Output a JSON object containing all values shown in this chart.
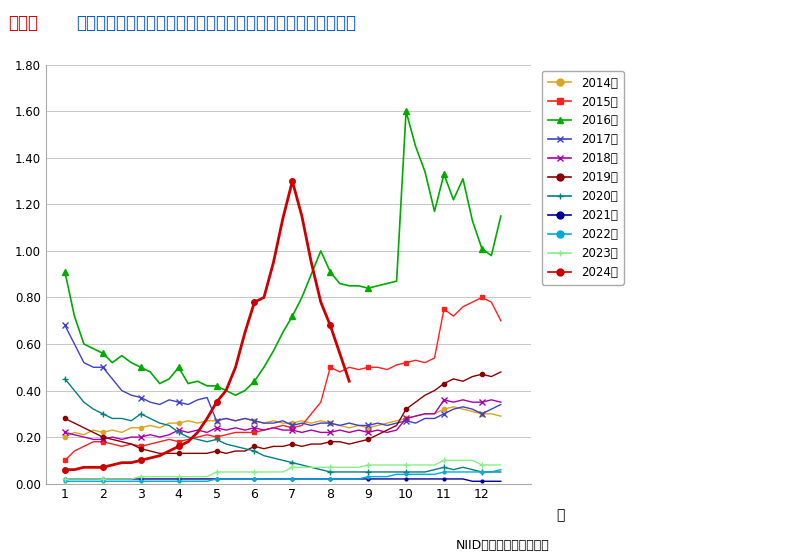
{
  "title_red": "図１．",
  "title_blue": "わが国における最近１０年間のマイコプラズマ肺炎患者の動向",
  "xlabel": "月",
  "footnote": "NIID　国立感染症研究所",
  "ylim": [
    0.0,
    1.8
  ],
  "yticks": [
    0.0,
    0.2,
    0.4,
    0.6,
    0.8,
    1.0,
    1.2,
    1.4,
    1.6,
    1.8
  ],
  "xlim": [
    0.5,
    13.3
  ],
  "xticks": [
    1,
    2,
    3,
    4,
    5,
    6,
    7,
    8,
    9,
    10,
    11,
    12
  ],
  "series": [
    {
      "label": "2014年",
      "color": "#DAA520",
      "marker": "o",
      "markersize": 3,
      "linewidth": 1.0,
      "xdata": [
        1.0,
        1.25,
        1.5,
        1.75,
        2.0,
        2.25,
        2.5,
        2.75,
        3.0,
        3.25,
        3.5,
        3.75,
        4.0,
        4.25,
        4.5,
        4.75,
        5.0,
        5.25,
        5.5,
        5.75,
        6.0,
        6.25,
        6.5,
        6.75,
        7.0,
        7.25,
        7.5,
        7.75,
        8.0,
        8.25,
        8.5,
        8.75,
        9.0,
        9.25,
        9.5,
        9.75,
        10.0,
        10.25,
        10.5,
        10.75,
        11.0,
        11.25,
        11.5,
        11.75,
        12.0,
        12.25,
        12.5
      ],
      "ydata": [
        0.2,
        0.22,
        0.21,
        0.23,
        0.22,
        0.23,
        0.22,
        0.24,
        0.24,
        0.25,
        0.24,
        0.26,
        0.26,
        0.27,
        0.26,
        0.27,
        0.27,
        0.28,
        0.27,
        0.28,
        0.27,
        0.26,
        0.27,
        0.26,
        0.26,
        0.27,
        0.26,
        0.27,
        0.26,
        0.25,
        0.24,
        0.25,
        0.24,
        0.25,
        0.26,
        0.27,
        0.28,
        0.29,
        0.3,
        0.3,
        0.32,
        0.33,
        0.32,
        0.31,
        0.3,
        0.3,
        0.29
      ]
    },
    {
      "label": "2015年",
      "color": "#FF2020",
      "marker": "s",
      "markersize": 3,
      "linewidth": 1.0,
      "xdata": [
        1.0,
        1.25,
        1.5,
        1.75,
        2.0,
        2.25,
        2.5,
        2.75,
        3.0,
        3.25,
        3.5,
        3.75,
        4.0,
        4.25,
        4.5,
        4.75,
        5.0,
        5.25,
        5.5,
        5.75,
        6.0,
        6.25,
        6.5,
        6.75,
        7.0,
        7.25,
        7.5,
        7.75,
        8.0,
        8.25,
        8.5,
        8.75,
        9.0,
        9.25,
        9.5,
        9.75,
        10.0,
        10.25,
        10.5,
        10.75,
        11.0,
        11.25,
        11.5,
        11.75,
        12.0,
        12.25,
        12.5
      ],
      "ydata": [
        0.1,
        0.14,
        0.16,
        0.18,
        0.18,
        0.17,
        0.16,
        0.17,
        0.16,
        0.17,
        0.18,
        0.19,
        0.18,
        0.19,
        0.2,
        0.21,
        0.2,
        0.21,
        0.22,
        0.22,
        0.22,
        0.23,
        0.24,
        0.25,
        0.24,
        0.25,
        0.3,
        0.35,
        0.5,
        0.48,
        0.5,
        0.49,
        0.5,
        0.5,
        0.49,
        0.51,
        0.52,
        0.53,
        0.52,
        0.54,
        0.75,
        0.72,
        0.76,
        0.78,
        0.8,
        0.78,
        0.7
      ]
    },
    {
      "label": "2016年",
      "color": "#00AA00",
      "marker": "^",
      "markersize": 4,
      "linewidth": 1.2,
      "xdata": [
        1.0,
        1.25,
        1.5,
        1.75,
        2.0,
        2.25,
        2.5,
        2.75,
        3.0,
        3.25,
        3.5,
        3.75,
        4.0,
        4.25,
        4.5,
        4.75,
        5.0,
        5.25,
        5.5,
        5.75,
        6.0,
        6.25,
        6.5,
        6.75,
        7.0,
        7.25,
        7.5,
        7.75,
        8.0,
        8.25,
        8.5,
        8.75,
        9.0,
        9.25,
        9.5,
        9.75,
        10.0,
        10.25,
        10.5,
        10.75,
        11.0,
        11.25,
        11.5,
        11.75,
        12.0,
        12.25,
        12.5
      ],
      "ydata": [
        0.91,
        0.72,
        0.6,
        0.58,
        0.56,
        0.52,
        0.55,
        0.52,
        0.5,
        0.48,
        0.43,
        0.45,
        0.5,
        0.43,
        0.44,
        0.42,
        0.42,
        0.4,
        0.38,
        0.4,
        0.44,
        0.5,
        0.57,
        0.65,
        0.72,
        0.8,
        0.9,
        1.0,
        0.91,
        0.86,
        0.85,
        0.85,
        0.84,
        0.85,
        0.86,
        0.87,
        1.6,
        1.45,
        1.34,
        1.17,
        1.33,
        1.22,
        1.31,
        1.13,
        1.01,
        0.98,
        1.15
      ]
    },
    {
      "label": "2017年",
      "color": "#4040CC",
      "marker": "x",
      "markersize": 4,
      "linewidth": 1.0,
      "xdata": [
        1.0,
        1.25,
        1.5,
        1.75,
        2.0,
        2.25,
        2.5,
        2.75,
        3.0,
        3.25,
        3.5,
        3.75,
        4.0,
        4.25,
        4.5,
        4.75,
        5.0,
        5.25,
        5.5,
        5.75,
        6.0,
        6.25,
        6.5,
        6.75,
        7.0,
        7.25,
        7.5,
        7.75,
        8.0,
        8.25,
        8.5,
        8.75,
        9.0,
        9.25,
        9.5,
        9.75,
        10.0,
        10.25,
        10.5,
        10.75,
        11.0,
        11.25,
        11.5,
        11.75,
        12.0,
        12.25,
        12.5
      ],
      "ydata": [
        0.68,
        0.6,
        0.52,
        0.5,
        0.5,
        0.45,
        0.4,
        0.38,
        0.37,
        0.35,
        0.34,
        0.36,
        0.35,
        0.34,
        0.36,
        0.37,
        0.27,
        0.28,
        0.27,
        0.28,
        0.27,
        0.26,
        0.26,
        0.27,
        0.25,
        0.26,
        0.25,
        0.26,
        0.26,
        0.25,
        0.26,
        0.25,
        0.25,
        0.26,
        0.25,
        0.26,
        0.27,
        0.26,
        0.28,
        0.28,
        0.3,
        0.32,
        0.33,
        0.32,
        0.3,
        0.32,
        0.34
      ]
    },
    {
      "label": "2018年",
      "color": "#AA00AA",
      "marker": "x",
      "markersize": 4,
      "linewidth": 1.0,
      "xdata": [
        1.0,
        1.25,
        1.5,
        1.75,
        2.0,
        2.25,
        2.5,
        2.75,
        3.0,
        3.25,
        3.5,
        3.75,
        4.0,
        4.25,
        4.5,
        4.75,
        5.0,
        5.25,
        5.5,
        5.75,
        6.0,
        6.25,
        6.5,
        6.75,
        7.0,
        7.25,
        7.5,
        7.75,
        8.0,
        8.25,
        8.5,
        8.75,
        9.0,
        9.25,
        9.5,
        9.75,
        10.0,
        10.25,
        10.5,
        10.75,
        11.0,
        11.25,
        11.5,
        11.75,
        12.0,
        12.25,
        12.5
      ],
      "ydata": [
        0.22,
        0.21,
        0.2,
        0.19,
        0.19,
        0.2,
        0.19,
        0.2,
        0.2,
        0.21,
        0.2,
        0.21,
        0.23,
        0.22,
        0.23,
        0.22,
        0.24,
        0.23,
        0.24,
        0.23,
        0.24,
        0.23,
        0.24,
        0.23,
        0.23,
        0.22,
        0.23,
        0.22,
        0.22,
        0.23,
        0.22,
        0.23,
        0.22,
        0.23,
        0.22,
        0.23,
        0.28,
        0.29,
        0.3,
        0.3,
        0.36,
        0.35,
        0.36,
        0.35,
        0.35,
        0.36,
        0.35
      ]
    },
    {
      "label": "2019年",
      "color": "#8B0000",
      "marker": "o",
      "markersize": 3,
      "linewidth": 1.0,
      "xdata": [
        1.0,
        1.25,
        1.5,
        1.75,
        2.0,
        2.25,
        2.5,
        2.75,
        3.0,
        3.25,
        3.5,
        3.75,
        4.0,
        4.25,
        4.5,
        4.75,
        5.0,
        5.25,
        5.5,
        5.75,
        6.0,
        6.25,
        6.5,
        6.75,
        7.0,
        7.25,
        7.5,
        7.75,
        8.0,
        8.25,
        8.5,
        8.75,
        9.0,
        9.25,
        9.5,
        9.75,
        10.0,
        10.25,
        10.5,
        10.75,
        11.0,
        11.25,
        11.5,
        11.75,
        12.0,
        12.25,
        12.5
      ],
      "ydata": [
        0.28,
        0.26,
        0.24,
        0.22,
        0.2,
        0.19,
        0.18,
        0.17,
        0.15,
        0.14,
        0.13,
        0.13,
        0.13,
        0.13,
        0.13,
        0.13,
        0.14,
        0.13,
        0.14,
        0.14,
        0.16,
        0.15,
        0.16,
        0.16,
        0.17,
        0.16,
        0.17,
        0.17,
        0.18,
        0.18,
        0.17,
        0.18,
        0.19,
        0.21,
        0.23,
        0.25,
        0.32,
        0.35,
        0.38,
        0.4,
        0.43,
        0.45,
        0.44,
        0.46,
        0.47,
        0.46,
        0.48
      ]
    },
    {
      "label": "2020年",
      "color": "#008080",
      "marker": "+",
      "markersize": 5,
      "linewidth": 1.0,
      "xdata": [
        1.0,
        1.25,
        1.5,
        1.75,
        2.0,
        2.25,
        2.5,
        2.75,
        3.0,
        3.25,
        3.5,
        3.75,
        4.0,
        4.25,
        4.5,
        4.75,
        5.0,
        5.25,
        5.5,
        5.75,
        6.0,
        6.25,
        6.5,
        6.75,
        7.0,
        7.25,
        7.5,
        7.75,
        8.0,
        8.25,
        8.5,
        8.75,
        9.0,
        9.25,
        9.5,
        9.75,
        10.0,
        10.25,
        10.5,
        10.75,
        11.0,
        11.25,
        11.5,
        11.75,
        12.0,
        12.25,
        12.5
      ],
      "ydata": [
        0.45,
        0.4,
        0.35,
        0.32,
        0.3,
        0.28,
        0.28,
        0.27,
        0.3,
        0.28,
        0.26,
        0.25,
        0.22,
        0.2,
        0.19,
        0.18,
        0.19,
        0.17,
        0.16,
        0.15,
        0.14,
        0.12,
        0.11,
        0.1,
        0.09,
        0.08,
        0.07,
        0.06,
        0.05,
        0.05,
        0.05,
        0.05,
        0.05,
        0.05,
        0.05,
        0.05,
        0.05,
        0.05,
        0.05,
        0.06,
        0.07,
        0.06,
        0.07,
        0.06,
        0.05,
        0.05,
        0.05
      ]
    },
    {
      "label": "2021年",
      "color": "#000099",
      "marker": "o",
      "markersize": 2,
      "linewidth": 1.0,
      "xdata": [
        1.0,
        1.25,
        1.5,
        1.75,
        2.0,
        2.25,
        2.5,
        2.75,
        3.0,
        3.25,
        3.5,
        3.75,
        4.0,
        4.25,
        4.5,
        4.75,
        5.0,
        5.25,
        5.5,
        5.75,
        6.0,
        6.25,
        6.5,
        6.75,
        7.0,
        7.25,
        7.5,
        7.75,
        8.0,
        8.25,
        8.5,
        8.75,
        9.0,
        9.25,
        9.5,
        9.75,
        10.0,
        10.25,
        10.5,
        10.75,
        11.0,
        11.25,
        11.5,
        11.75,
        12.0,
        12.25,
        12.5
      ],
      "ydata": [
        0.02,
        0.02,
        0.02,
        0.02,
        0.02,
        0.02,
        0.02,
        0.02,
        0.02,
        0.02,
        0.02,
        0.02,
        0.02,
        0.02,
        0.02,
        0.02,
        0.02,
        0.02,
        0.02,
        0.02,
        0.02,
        0.02,
        0.02,
        0.02,
        0.02,
        0.02,
        0.02,
        0.02,
        0.02,
        0.02,
        0.02,
        0.02,
        0.02,
        0.02,
        0.02,
        0.02,
        0.02,
        0.02,
        0.02,
        0.02,
        0.02,
        0.02,
        0.02,
        0.01,
        0.01,
        0.01,
        0.01
      ]
    },
    {
      "label": "2022年",
      "color": "#00AADD",
      "marker": "o",
      "markersize": 2,
      "linewidth": 1.0,
      "xdata": [
        1.0,
        1.25,
        1.5,
        1.75,
        2.0,
        2.25,
        2.5,
        2.75,
        3.0,
        3.25,
        3.5,
        3.75,
        4.0,
        4.25,
        4.5,
        4.75,
        5.0,
        5.25,
        5.5,
        5.75,
        6.0,
        6.25,
        6.5,
        6.75,
        7.0,
        7.25,
        7.5,
        7.75,
        8.0,
        8.25,
        8.5,
        8.75,
        9.0,
        9.25,
        9.5,
        9.75,
        10.0,
        10.25,
        10.5,
        10.75,
        11.0,
        11.25,
        11.5,
        11.75,
        12.0,
        12.25,
        12.5
      ],
      "ydata": [
        0.01,
        0.01,
        0.01,
        0.01,
        0.01,
        0.01,
        0.01,
        0.01,
        0.01,
        0.01,
        0.01,
        0.01,
        0.01,
        0.01,
        0.01,
        0.01,
        0.02,
        0.02,
        0.02,
        0.02,
        0.02,
        0.02,
        0.02,
        0.02,
        0.02,
        0.02,
        0.02,
        0.02,
        0.02,
        0.02,
        0.02,
        0.02,
        0.03,
        0.03,
        0.03,
        0.04,
        0.04,
        0.04,
        0.04,
        0.04,
        0.05,
        0.05,
        0.05,
        0.05,
        0.05,
        0.05,
        0.06
      ]
    },
    {
      "label": "2023年",
      "color": "#88EE88",
      "marker": "+",
      "markersize": 4,
      "linewidth": 1.0,
      "xdata": [
        1.0,
        1.25,
        1.5,
        1.75,
        2.0,
        2.25,
        2.5,
        2.75,
        3.0,
        3.25,
        3.5,
        3.75,
        4.0,
        4.25,
        4.5,
        4.75,
        5.0,
        5.25,
        5.5,
        5.75,
        6.0,
        6.25,
        6.5,
        6.75,
        7.0,
        7.25,
        7.5,
        7.75,
        8.0,
        8.25,
        8.5,
        8.75,
        9.0,
        9.25,
        9.5,
        9.75,
        10.0,
        10.25,
        10.5,
        10.75,
        11.0,
        11.25,
        11.5,
        11.75,
        12.0,
        12.25,
        12.5
      ],
      "ydata": [
        0.02,
        0.02,
        0.02,
        0.02,
        0.02,
        0.02,
        0.02,
        0.02,
        0.03,
        0.03,
        0.03,
        0.03,
        0.03,
        0.03,
        0.03,
        0.03,
        0.05,
        0.05,
        0.05,
        0.05,
        0.05,
        0.05,
        0.05,
        0.05,
        0.07,
        0.07,
        0.07,
        0.07,
        0.07,
        0.07,
        0.07,
        0.07,
        0.08,
        0.08,
        0.08,
        0.08,
        0.08,
        0.08,
        0.08,
        0.08,
        0.1,
        0.1,
        0.1,
        0.1,
        0.08,
        0.08,
        0.08
      ]
    },
    {
      "label": "2024年",
      "color": "#CC0000",
      "marker": "o",
      "markersize": 4,
      "linewidth": 2.0,
      "xdata": [
        1.0,
        1.25,
        1.5,
        1.75,
        2.0,
        2.25,
        2.5,
        2.75,
        3.0,
        3.25,
        3.5,
        3.75,
        4.0,
        4.25,
        4.5,
        4.75,
        5.0,
        5.25,
        5.5,
        5.75,
        6.0,
        6.25,
        6.5,
        6.75,
        7.0,
        7.25,
        7.5,
        7.75,
        8.0,
        8.25,
        8.5
      ],
      "ydata": [
        0.06,
        0.06,
        0.07,
        0.07,
        0.07,
        0.08,
        0.09,
        0.09,
        0.1,
        0.11,
        0.12,
        0.14,
        0.16,
        0.18,
        0.22,
        0.28,
        0.35,
        0.4,
        0.5,
        0.65,
        0.78,
        0.8,
        0.95,
        1.14,
        1.3,
        1.15,
        0.95,
        0.78,
        0.68,
        0.56,
        0.44
      ]
    }
  ]
}
